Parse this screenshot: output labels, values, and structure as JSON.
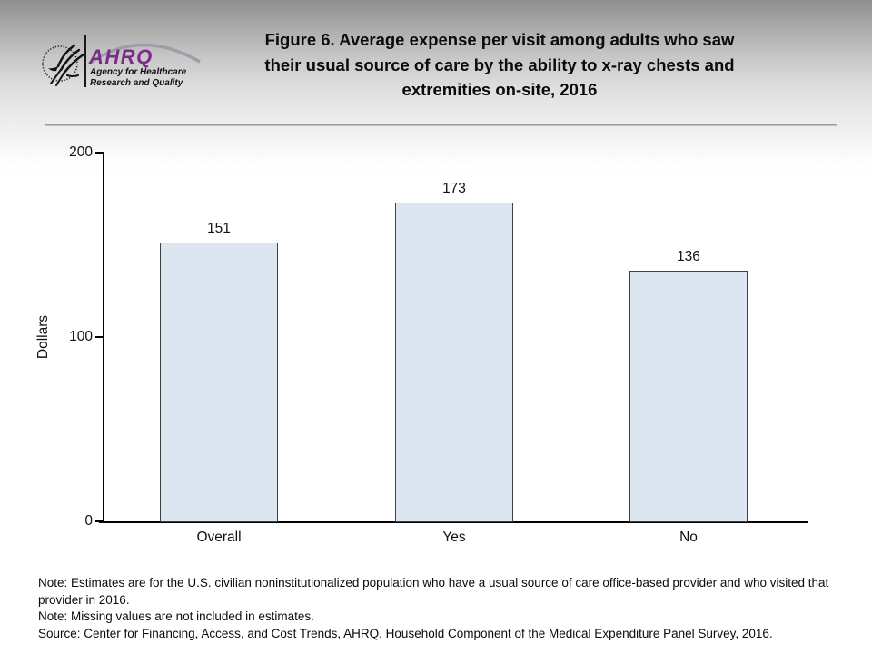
{
  "header": {
    "title_lines": [
      "Figure 6. Average expense per visit among adults who saw",
      "their usual source of care by the ability to x-ray chests and",
      "extremities on-site, 2016"
    ],
    "logo": {
      "ahrq_acronym": "AHRQ",
      "tagline_line1": "Agency for Healthcare",
      "tagline_line2": "Research and Quality"
    }
  },
  "chart_data": {
    "type": "bar",
    "categories": [
      "Overall",
      "Yes",
      "No"
    ],
    "values": [
      151,
      173,
      136
    ],
    "title": "Figure 6. Average expense per visit among adults who saw their usual source of care by the ability to x-ray chests and extremities on-site, 2016",
    "xlabel": "",
    "ylabel": "Dollars",
    "ylim": [
      0,
      200
    ],
    "yticks": [
      0,
      100,
      200
    ],
    "grid": false,
    "legend": false,
    "data_labels": true,
    "bar_fill_color": "#dce6f1",
    "bar_border_color": "#404040",
    "axis_color": "#000000"
  },
  "notes": [
    "Note: Estimates are for the U.S. civilian noninstitutionalized population who have a usual source of care office-based provider and who visited that provider in 2016.",
    "Note: Missing values are not included in estimates.",
    "Source: Center for Financing, Access, and Cost Trends, AHRQ, Household Component of the Medical Expenditure Panel Survey, 2016."
  ]
}
